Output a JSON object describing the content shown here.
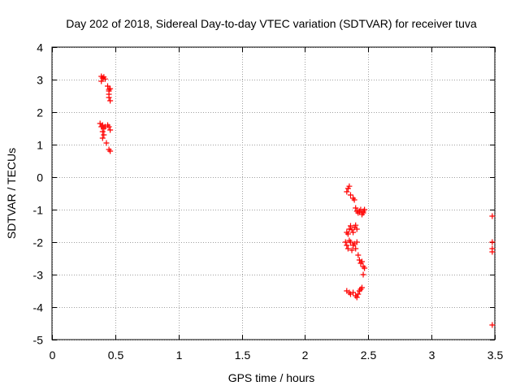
{
  "chart_data": {
    "type": "scatter",
    "title": "Day 202 of 2018, Sidereal Day-to-day VTEC variation (SDTVAR) for receiver tuva",
    "xlabel": "GPS time / hours",
    "ylabel": "SDTVAR / TECUs",
    "xlim": [
      0,
      3.5
    ],
    "ylim": [
      -5,
      4
    ],
    "xticks": [
      0,
      0.5,
      1,
      1.5,
      2,
      2.5,
      3,
      3.5
    ],
    "xtick_labels": [
      "0",
      "0.5",
      "1",
      "1.5",
      "2",
      "2.5",
      "3",
      "3.5"
    ],
    "yticks": [
      -5,
      -4,
      -3,
      -2,
      -1,
      0,
      1,
      2,
      3,
      4
    ],
    "ytick_labels": [
      "-5",
      "-4",
      "-3",
      "-2",
      "-1",
      "0",
      "1",
      "2",
      "3",
      "4"
    ],
    "grid": true,
    "marker": "+",
    "marker_color": "#ff0000",
    "grid_color": "#a0a0a0",
    "series": [
      {
        "name": "SDTVAR",
        "points": [
          [
            0.39,
            3.1
          ],
          [
            0.4,
            3.05
          ],
          [
            0.41,
            3.08
          ],
          [
            0.39,
            2.95
          ],
          [
            0.42,
            3.02
          ],
          [
            0.44,
            2.8
          ],
          [
            0.45,
            2.7
          ],
          [
            0.45,
            2.65
          ],
          [
            0.46,
            2.72
          ],
          [
            0.45,
            2.55
          ],
          [
            0.45,
            2.45
          ],
          [
            0.46,
            2.35
          ],
          [
            0.38,
            1.65
          ],
          [
            0.39,
            1.55
          ],
          [
            0.4,
            1.6
          ],
          [
            0.41,
            1.5
          ],
          [
            0.4,
            1.4
          ],
          [
            0.41,
            1.3
          ],
          [
            0.4,
            1.2
          ],
          [
            0.42,
            1.55
          ],
          [
            0.44,
            1.6
          ],
          [
            0.45,
            1.55
          ],
          [
            0.46,
            1.45
          ],
          [
            0.43,
            1.05
          ],
          [
            0.45,
            0.85
          ],
          [
            0.46,
            0.8
          ],
          [
            2.33,
            -0.45
          ],
          [
            2.34,
            -0.35
          ],
          [
            2.35,
            -0.28
          ],
          [
            2.36,
            -0.55
          ],
          [
            2.38,
            -0.65
          ],
          [
            2.39,
            -0.7
          ],
          [
            2.4,
            -0.95
          ],
          [
            2.41,
            -1.05
          ],
          [
            2.42,
            -1.1
          ],
          [
            2.43,
            -1.05
          ],
          [
            2.44,
            -1.0
          ],
          [
            2.45,
            -1.15
          ],
          [
            2.46,
            -1.05
          ],
          [
            2.47,
            -1.0
          ],
          [
            2.46,
            -1.1
          ],
          [
            2.33,
            -1.7
          ],
          [
            2.34,
            -1.75
          ],
          [
            2.35,
            -1.6
          ],
          [
            2.36,
            -1.5
          ],
          [
            2.37,
            -1.62
          ],
          [
            2.38,
            -1.7
          ],
          [
            2.39,
            -1.55
          ],
          [
            2.4,
            -1.48
          ],
          [
            2.41,
            -1.6
          ],
          [
            2.32,
            -2.0
          ],
          [
            2.33,
            -2.1
          ],
          [
            2.34,
            -2.2
          ],
          [
            2.35,
            -1.95
          ],
          [
            2.36,
            -2.0
          ],
          [
            2.37,
            -2.25
          ],
          [
            2.38,
            -2.1
          ],
          [
            2.39,
            -2.05
          ],
          [
            2.4,
            -2.2
          ],
          [
            2.41,
            -2.0
          ],
          [
            2.42,
            -2.4
          ],
          [
            2.43,
            -2.55
          ],
          [
            2.44,
            -2.65
          ],
          [
            2.45,
            -2.6
          ],
          [
            2.46,
            -2.75
          ],
          [
            2.47,
            -2.8
          ],
          [
            2.46,
            -3.0
          ],
          [
            2.33,
            -3.5
          ],
          [
            2.35,
            -3.55
          ],
          [
            2.36,
            -3.6
          ],
          [
            2.38,
            -3.55
          ],
          [
            2.4,
            -3.65
          ],
          [
            2.41,
            -3.7
          ],
          [
            2.42,
            -3.6
          ],
          [
            2.43,
            -3.5
          ],
          [
            2.44,
            -3.45
          ],
          [
            2.45,
            -3.4
          ],
          [
            3.48,
            -1.2
          ],
          [
            3.48,
            -2.0
          ],
          [
            3.48,
            -2.2
          ],
          [
            3.48,
            -2.3
          ],
          [
            3.48,
            -4.55
          ]
        ]
      }
    ]
  }
}
